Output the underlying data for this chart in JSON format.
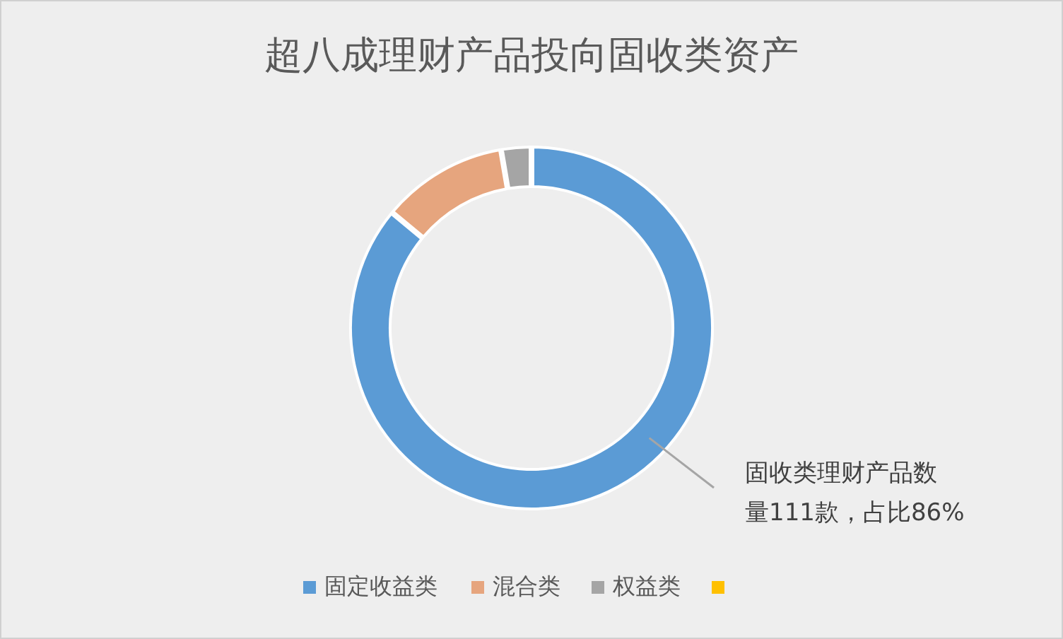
{
  "chart_data": {
    "type": "donut",
    "title": "超八成理财产品投向固收类资产",
    "categories": [
      "固定收益类",
      "混合类",
      "权益类",
      null
    ],
    "values": [
      86,
      11.3,
      2.7,
      0
    ],
    "colors": [
      "#5b9bd5",
      "#e6a57e",
      "#a5a5a5",
      "#ffc000"
    ],
    "legend": "bottom",
    "annotations": [
      "固收类理财产品数量111款，占比86%"
    ]
  }
}
